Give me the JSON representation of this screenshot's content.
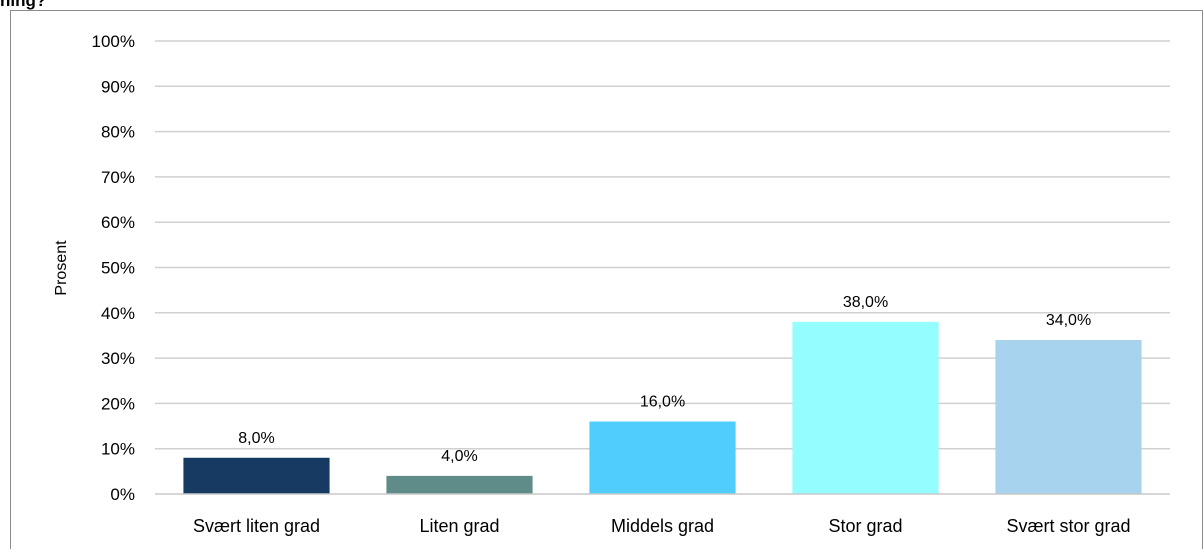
{
  "chart_data": {
    "type": "bar",
    "title": "ning?",
    "ylabel": "Prosent",
    "xlabel": "",
    "categories": [
      "Svært liten grad",
      "Liten grad",
      "Middels grad",
      "Stor grad",
      "Svært stor grad"
    ],
    "values": [
      8.0,
      4.0,
      16.0,
      38.0,
      34.0
    ],
    "data_labels": [
      "8,0%",
      "4,0%",
      "16,0%",
      "38,0%",
      "34,0%"
    ],
    "colors": [
      "#173a62",
      "#5f8c88",
      "#50cdfd",
      "#93fdff",
      "#a7d3ee"
    ],
    "ylim": [
      0,
      100
    ],
    "yticks": [
      0,
      10,
      20,
      30,
      40,
      50,
      60,
      70,
      80,
      90,
      100
    ],
    "ytick_labels": [
      "0%",
      "10%",
      "20%",
      "30%",
      "40%",
      "50%",
      "60%",
      "70%",
      "80%",
      "90%",
      "100%"
    ],
    "grid": true,
    "legend": "none"
  }
}
